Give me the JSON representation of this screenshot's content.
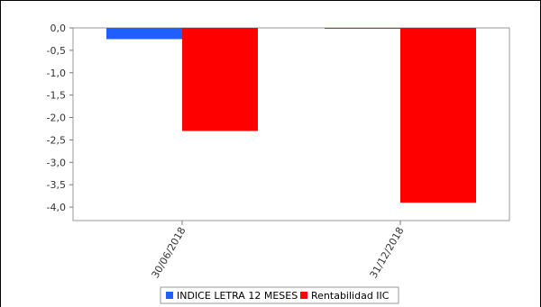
{
  "chart_data": {
    "type": "bar",
    "categories": [
      "30/06/2018",
      "31/12/2018"
    ],
    "series": [
      {
        "name": "INDICE LETRA 12 MESES",
        "color": "#1f5fff",
        "values": [
          -0.25,
          -0.02
        ]
      },
      {
        "name": "Rentabilidad IIC",
        "color": "#ff0000",
        "values": [
          -2.3,
          -3.9
        ]
      }
    ],
    "ylim": [
      -4.3,
      0.0
    ],
    "yticks": [
      "0,0",
      "-0,5",
      "-1,0",
      "-1,5",
      "-2,0",
      "-2,5",
      "-3,0",
      "-3,5",
      "-4,0"
    ],
    "ytick_values": [
      0.0,
      -0.5,
      -1.0,
      -1.5,
      -2.0,
      -2.5,
      -3.0,
      -3.5,
      -4.0
    ],
    "grid": false,
    "legend_position": "bottom-center"
  }
}
